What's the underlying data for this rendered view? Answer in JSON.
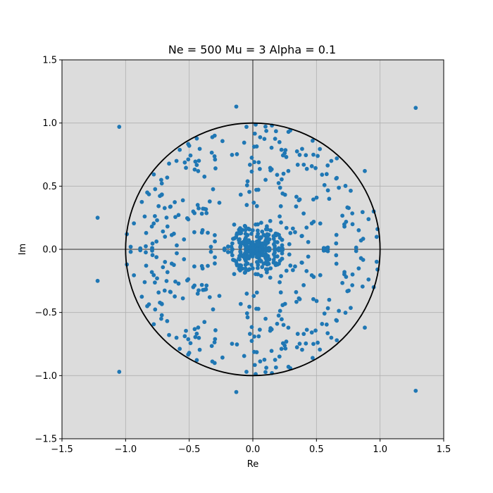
{
  "chart_data": {
    "type": "scatter",
    "title": "Ne = 500 Mu = 3 Alpha = 0.1",
    "xlabel": "Re",
    "ylabel": "Im",
    "xlim": [
      -1.5,
      1.5
    ],
    "ylim": [
      -1.5,
      1.5
    ],
    "xticks": [
      -1.5,
      -1.0,
      -0.5,
      0.0,
      0.5,
      1.0,
      1.5
    ],
    "yticks": [
      -1.5,
      -1.0,
      -0.5,
      0.0,
      0.5,
      1.0,
      1.5
    ],
    "xtick_labels": [
      "−1.5",
      "−1.0",
      "−0.5",
      "0.0",
      "0.5",
      "1.0",
      "1.5"
    ],
    "ytick_labels": [
      "−1.5",
      "−1.0",
      "−0.5",
      "0.0",
      "0.5",
      "1.0",
      "1.5"
    ],
    "grid": true,
    "unit_circle": {
      "center": [
        0,
        0
      ],
      "radius": 1,
      "color": "#000000"
    },
    "reference_lines": {
      "x": 0,
      "y": 0,
      "color": "#000000"
    },
    "colors": {
      "points": "#1f77b4",
      "plot_background": "#dcdcdc",
      "grid": "#b0b0b0"
    },
    "series": [
      {
        "x": [
          1.28,
          1.28,
          -1.05,
          -1.05,
          -1.22,
          -1.22,
          -0.13,
          -0.13,
          0.88,
          0.88,
          0.95,
          0.95,
          0.85,
          0.85,
          0.47,
          0.47,
          0.28,
          0.28,
          0.4,
          0.4,
          -0.3,
          -0.3,
          -0.5,
          -0.5,
          -0.83,
          -0.83,
          -0.96,
          -0.96,
          -0.72,
          -0.72,
          0.6,
          0.6,
          0.72,
          0.72,
          0.15,
          0.15,
          -0.05,
          -0.05,
          -0.6,
          -0.6,
          0.98,
          0.98,
          -0.99,
          -0.99,
          0.66,
          0.66,
          -0.38,
          -0.38,
          0.1,
          0.1,
          -0.85,
          -0.85
        ],
        "y": [
          1.12,
          -1.12,
          0.97,
          -0.97,
          0.25,
          -0.25,
          1.13,
          -1.13,
          0.62,
          -0.62,
          0.3,
          -0.3,
          0.07,
          -0.07,
          0.86,
          -0.86,
          0.93,
          -0.93,
          0.67,
          -0.67,
          0.9,
          -0.9,
          0.82,
          -0.82,
          0.45,
          -0.45,
          0.02,
          -0.02,
          0.55,
          -0.55,
          0.4,
          -0.4,
          0.18,
          -0.18,
          0.98,
          -0.98,
          0.97,
          -0.97,
          0.7,
          -0.7,
          0.16,
          -0.16,
          0.12,
          -0.12,
          0.72,
          -0.72,
          0.32,
          -0.32,
          0.55,
          -0.55,
          0.26,
          -0.26
        ]
      }
    ]
  }
}
